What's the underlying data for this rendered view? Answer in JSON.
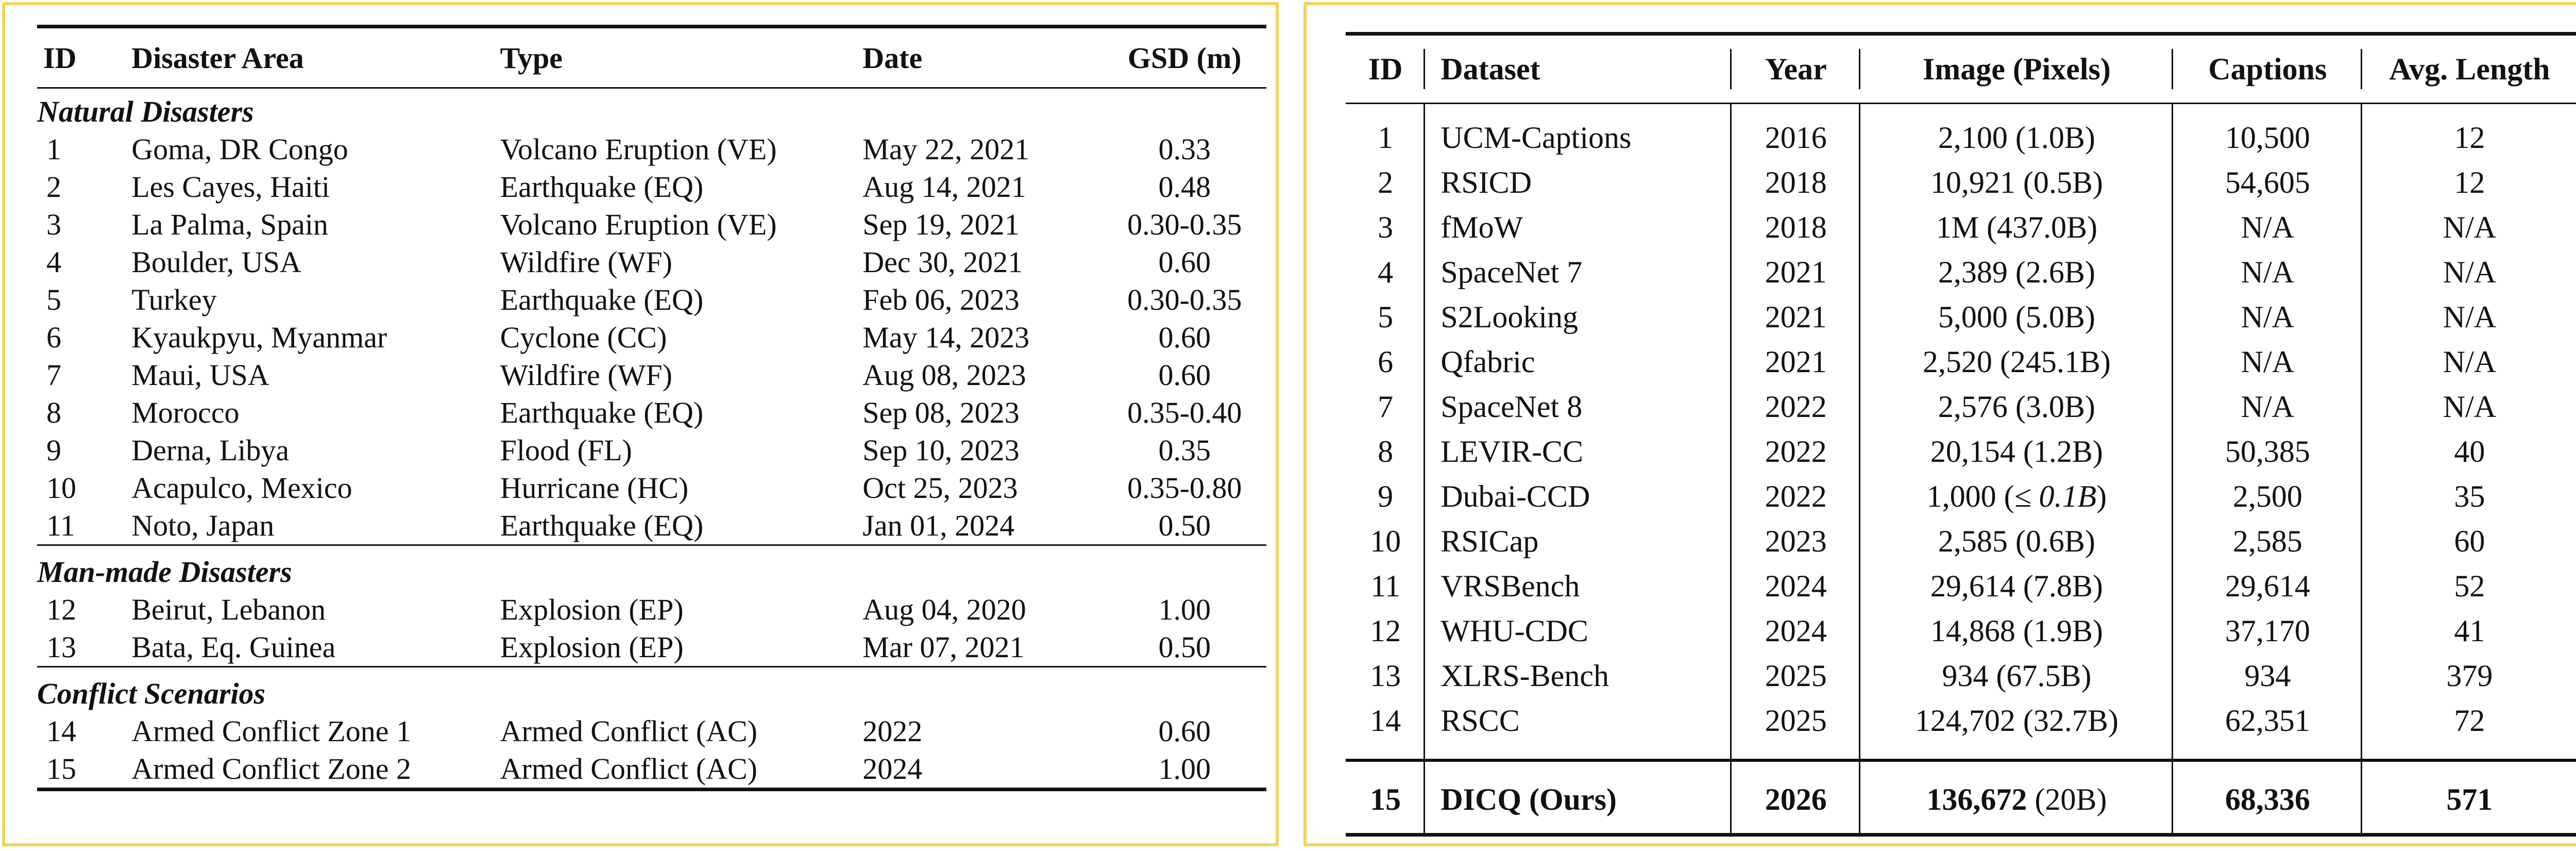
{
  "left_table": {
    "headers": {
      "id": "ID",
      "area": "Disaster Area",
      "type": "Type",
      "date": "Date",
      "gsd": "GSD (m)"
    },
    "sections": [
      {
        "title": "Natural Disasters",
        "rows": [
          {
            "id": "1",
            "area": "Goma, DR Congo",
            "type": "Volcano Eruption (VE)",
            "date": "May 22, 2021",
            "gsd": "0.33"
          },
          {
            "id": "2",
            "area": "Les Cayes, Haiti",
            "type": "Earthquake (EQ)",
            "date": "Aug 14, 2021",
            "gsd": "0.48"
          },
          {
            "id": "3",
            "area": "La Palma, Spain",
            "type": "Volcano Eruption (VE)",
            "date": "Sep 19, 2021",
            "gsd": "0.30-0.35"
          },
          {
            "id": "4",
            "area": "Boulder, USA",
            "type": "Wildfire (WF)",
            "date": "Dec 30, 2021",
            "gsd": "0.60"
          },
          {
            "id": "5",
            "area": "Turkey",
            "type": "Earthquake (EQ)",
            "date": "Feb 06, 2023",
            "gsd": "0.30-0.35"
          },
          {
            "id": "6",
            "area": "Kyaukpyu, Myanmar",
            "type": "Cyclone (CC)",
            "date": "May 14, 2023",
            "gsd": "0.60"
          },
          {
            "id": "7",
            "area": "Maui, USA",
            "type": "Wildfire (WF)",
            "date": "Aug 08, 2023",
            "gsd": "0.60"
          },
          {
            "id": "8",
            "area": "Morocco",
            "type": "Earthquake (EQ)",
            "date": "Sep 08, 2023",
            "gsd": "0.35-0.40"
          },
          {
            "id": "9",
            "area": "Derna, Libya",
            "type": "Flood (FL)",
            "date": "Sep 10, 2023",
            "gsd": "0.35"
          },
          {
            "id": "10",
            "area": "Acapulco, Mexico",
            "type": "Hurricane (HC)",
            "date": "Oct 25, 2023",
            "gsd": "0.35-0.80"
          },
          {
            "id": "11",
            "area": "Noto, Japan",
            "type": "Earthquake (EQ)",
            "date": "Jan 01, 2024",
            "gsd": "0.50"
          }
        ]
      },
      {
        "title": "Man-made Disasters",
        "rows": [
          {
            "id": "12",
            "area": "Beirut, Lebanon",
            "type": "Explosion (EP)",
            "date": "Aug 04, 2020",
            "gsd": "1.00"
          },
          {
            "id": "13",
            "area": "Bata, Eq. Guinea",
            "type": "Explosion (EP)",
            "date": "Mar 07, 2021",
            "gsd": "0.50"
          }
        ]
      },
      {
        "title": "Conflict Scenarios",
        "rows": [
          {
            "id": "14",
            "area": "Armed Conflict Zone 1",
            "type": "Armed Conflict (AC)",
            "date": "2022",
            "gsd": "0.60"
          },
          {
            "id": "15",
            "area": "Armed Conflict Zone 2",
            "type": "Armed Conflict (AC)",
            "date": "2024",
            "gsd": "1.00"
          }
        ]
      }
    ]
  },
  "right_table": {
    "headers": {
      "id": "ID",
      "dataset": "Dataset",
      "year": "Year",
      "image": "Image (Pixels)",
      "captions": "Captions",
      "avg_length": "Avg. Length"
    },
    "rows": [
      {
        "id": "1",
        "dataset": "UCM-Captions",
        "year": "2016",
        "image": "2,100 (1.0B)",
        "captions": "10,500",
        "avg_length": "12"
      },
      {
        "id": "2",
        "dataset": "RSICD",
        "year": "2018",
        "image": "10,921 (0.5B)",
        "captions": "54,605",
        "avg_length": "12"
      },
      {
        "id": "3",
        "dataset": "fMoW",
        "year": "2018",
        "image": "1M (437.0B)",
        "captions": "N/A",
        "avg_length": "N/A"
      },
      {
        "id": "4",
        "dataset": "SpaceNet 7",
        "year": "2021",
        "image": "2,389 (2.6B)",
        "captions": "N/A",
        "avg_length": "N/A"
      },
      {
        "id": "5",
        "dataset": "S2Looking",
        "year": "2021",
        "image": "5,000 (5.0B)",
        "captions": "N/A",
        "avg_length": "N/A"
      },
      {
        "id": "6",
        "dataset": "Qfabric",
        "year": "2021",
        "image": "2,520 (245.1B)",
        "captions": "N/A",
        "avg_length": "N/A"
      },
      {
        "id": "7",
        "dataset": "SpaceNet 8",
        "year": "2022",
        "image": "2,576 (3.0B)",
        "captions": "N/A",
        "avg_length": "N/A"
      },
      {
        "id": "8",
        "dataset": "LEVIR-CC",
        "year": "2022",
        "image": "20,154 (1.2B)",
        "captions": "50,385",
        "avg_length": "40"
      },
      {
        "id": "9",
        "dataset": "Dubai-CCD",
        "year": "2022",
        "image_prefix": "1,000 (",
        "image_math": "≤ 0.1B",
        "image_suffix": ")",
        "captions": "2,500",
        "avg_length": "35"
      },
      {
        "id": "10",
        "dataset": "RSICap",
        "year": "2023",
        "image": "2,585 (0.6B)",
        "captions": "2,585",
        "avg_length": "60"
      },
      {
        "id": "11",
        "dataset": "VRSBench",
        "year": "2024",
        "image": "29,614 (7.8B)",
        "captions": "29,614",
        "avg_length": "52"
      },
      {
        "id": "12",
        "dataset": "WHU-CDC",
        "year": "2024",
        "image": "14,868 (1.9B)",
        "captions": "37,170",
        "avg_length": "41"
      },
      {
        "id": "13",
        "dataset": "XLRS-Bench",
        "year": "2025",
        "image": "934 (67.5B)",
        "captions": "934",
        "avg_length": "379"
      },
      {
        "id": "14",
        "dataset": "RSCC",
        "year": "2025",
        "image": "124,702 (32.7B)",
        "captions": "62,351",
        "avg_length": "72"
      }
    ],
    "ours": {
      "id": "15",
      "dataset": "DICQ (Ours)",
      "year": "2026",
      "image_bold": "136,672",
      "image_rest": " (20B)",
      "captions": "68,336",
      "avg_length": "571"
    }
  }
}
